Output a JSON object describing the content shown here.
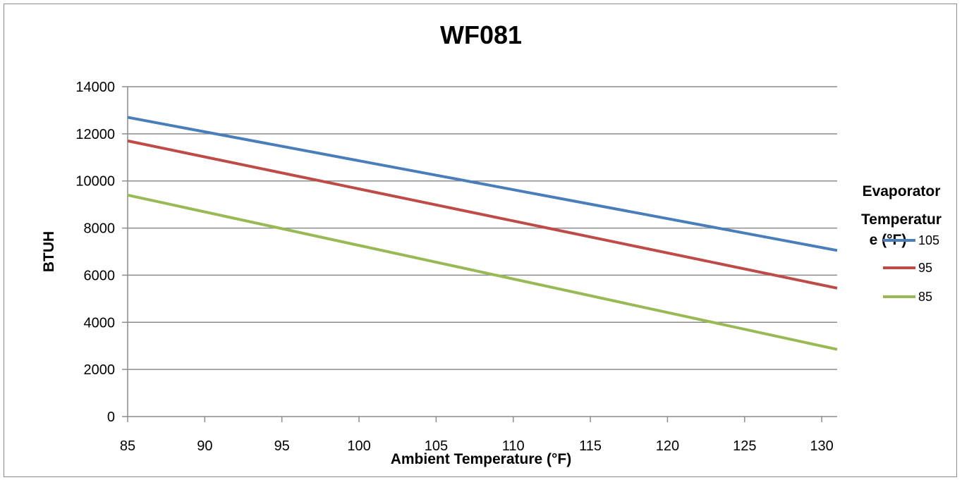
{
  "chart_data": {
    "type": "line",
    "title": "WF081",
    "xlabel": "Ambient Temperature  (°F)",
    "ylabel": "BTUH",
    "xlim": [
      85,
      131
    ],
    "ylim": [
      0,
      14000
    ],
    "x_ticks": [
      85,
      90,
      95,
      100,
      105,
      110,
      115,
      120,
      125,
      130
    ],
    "y_ticks": [
      0,
      2000,
      4000,
      6000,
      8000,
      10000,
      12000,
      14000
    ],
    "grid": "horizontal",
    "legend": {
      "title_lines": [
        "Evaporator",
        "Temperatur",
        "e (°F)"
      ],
      "placement": "right"
    },
    "series": [
      {
        "name": "105",
        "color": "#4a7ebb",
        "x": [
          85,
          131
        ],
        "y": [
          12700,
          7050
        ]
      },
      {
        "name": "95",
        "color": "#be4b48",
        "x": [
          85,
          131
        ],
        "y": [
          11700,
          5450
        ]
      },
      {
        "name": "85",
        "color": "#98b954",
        "x": [
          85,
          131
        ],
        "y": [
          9400,
          2850
        ]
      }
    ]
  }
}
